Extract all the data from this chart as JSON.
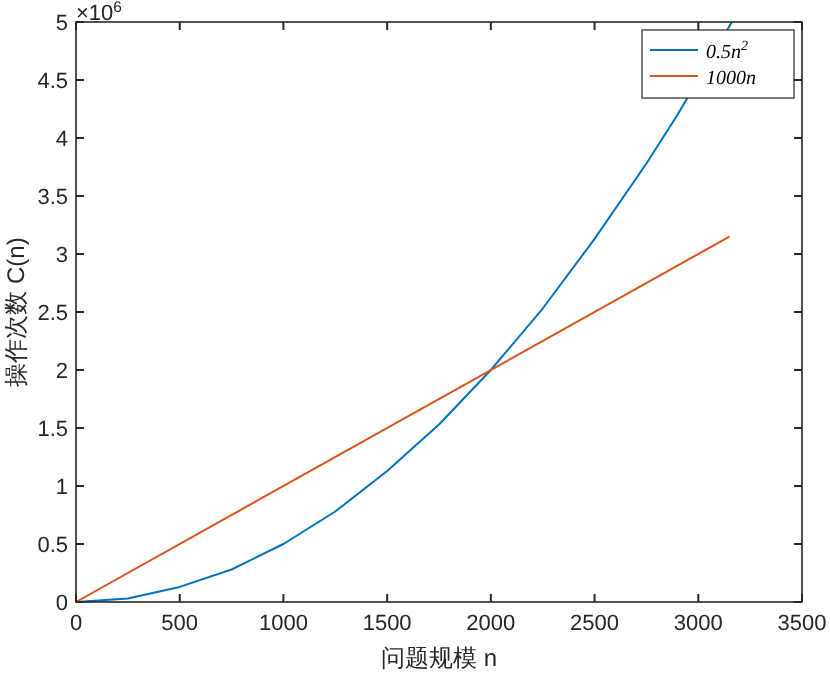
{
  "chart_data": {
    "type": "line",
    "xlabel": "问题规模 n",
    "ylabel": "操作次数 C(n)",
    "xlim": [
      0,
      3500
    ],
    "xticks": [
      0,
      500,
      1000,
      1500,
      2000,
      2500,
      3000,
      3500
    ],
    "ylim": [
      0,
      5
    ],
    "yticks": [
      0,
      0.5,
      1,
      1.5,
      2,
      2.5,
      3,
      3.5,
      4,
      4.5,
      5
    ],
    "annotations": [
      "×10$^{6}$"
    ],
    "legend": "top right",
    "grid": false,
    "series": [
      {
        "name": "0.5n$^{2}$",
        "color": "#0072bd",
        "x": [
          0,
          250,
          500,
          750,
          1000,
          1250,
          1500,
          1750,
          2000,
          2250,
          2500,
          2750,
          2900,
          3162
        ],
        "values": [
          0,
          0.03,
          0.13,
          0.28,
          0.5,
          0.78,
          1.13,
          1.53,
          2,
          2.53,
          3.13,
          3.78,
          4.2,
          5
        ]
      },
      {
        "name": "1000n",
        "color": "#d95319",
        "x": [
          0,
          3150
        ],
        "values": [
          0,
          3.15
        ]
      }
    ]
  }
}
